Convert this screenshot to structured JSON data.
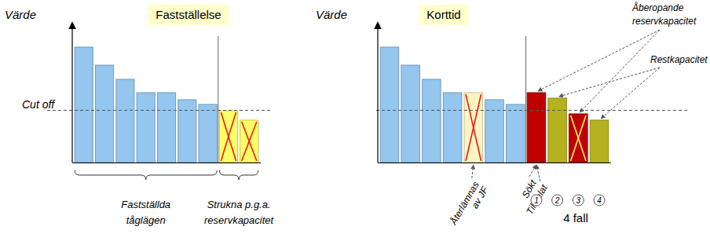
{
  "chart_data": [
    {
      "type": "bar",
      "title": "Fastställelse",
      "y_label": "Värde",
      "tick_labels": false,
      "categories": [
        null,
        null,
        null,
        null,
        null,
        null,
        null,
        null,
        null
      ],
      "values": [
        147,
        124,
        106,
        89,
        89,
        80,
        74,
        66,
        54
      ],
      "colors": [
        "#94c6ee",
        "#94c6ee",
        "#94c6ee",
        "#94c6ee",
        "#94c6ee",
        "#94c6ee",
        "#94c6ee",
        "#ffff66",
        "#ffff66"
      ],
      "crossed": [
        false,
        false,
        false,
        false,
        false,
        false,
        false,
        true,
        true
      ],
      "ylim": [
        0,
        165
      ],
      "yticks": [],
      "cut_off": {
        "label": "Cut off",
        "value": 67
      },
      "groups": [
        {
          "label": [
            "Fastställda",
            "tåglägen"
          ],
          "from": 0,
          "to": 6
        },
        {
          "label": [
            "Strukna p.g.a.",
            "reservkapacitet"
          ],
          "from": 7,
          "to": 8
        }
      ]
    },
    {
      "type": "bar",
      "title": "Korttid",
      "y_label": "Värde",
      "tick_labels": false,
      "categories": [
        null,
        null,
        null,
        null,
        null,
        null,
        null,
        null,
        null,
        null,
        null
      ],
      "values": [
        147,
        124,
        106,
        89,
        89,
        80,
        74,
        89,
        82,
        62,
        54
      ],
      "colors": [
        "#94c6ee",
        "#94c6ee",
        "#94c6ee",
        "#94c6ee",
        "#fff5c0",
        "#94c6ee",
        "#94c6ee",
        "#c00000",
        "#b5b21f",
        "#c00000",
        "#b5b21f"
      ],
      "crossed": [
        false,
        false,
        false,
        false,
        true,
        false,
        false,
        false,
        false,
        true,
        false
      ],
      "ylim": [
        0,
        165
      ],
      "yticks": [],
      "cut_off": {
        "value": 67
      },
      "annotations": [
        {
          "label": [
            "Återlämnas",
            "av JF"
          ],
          "target": 4
        },
        {
          "label": [
            "Sökt"
          ],
          "target": 7
        },
        {
          "label": [
            "Tilldelat"
          ],
          "target": 7
        }
      ],
      "pointers": [
        {
          "label": [
            "Åberopande",
            "reservkapacitet"
          ],
          "targets": [
            7,
            9
          ]
        },
        {
          "label": [
            "Restkapacitet"
          ],
          "targets": [
            8,
            10
          ]
        }
      ],
      "cases": {
        "labels": [
          1,
          2,
          3,
          4
        ],
        "targets": [
          7,
          8,
          9,
          10
        ],
        "caption": "4 fall"
      }
    }
  ]
}
